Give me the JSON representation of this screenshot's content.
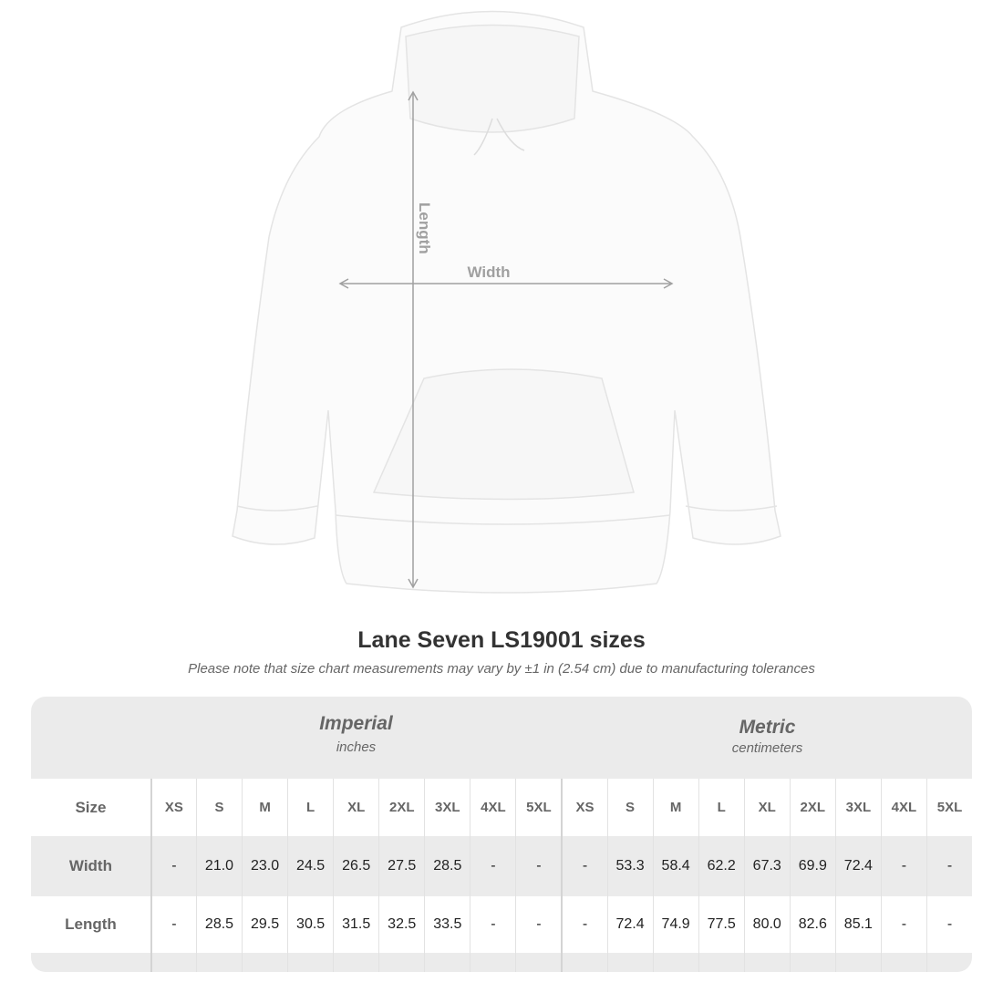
{
  "diagram": {
    "length_label": "Length",
    "width_label": "Width"
  },
  "title": "Lane Seven LS19001 sizes",
  "note": "Please note that size chart measurements may vary by ±1 in (2.54 cm) due to manufacturing tolerances",
  "table": {
    "imperial": {
      "name": "Imperial",
      "unit": "inches"
    },
    "metric": {
      "name": "Metric",
      "unit": "centimeters"
    },
    "size_label": "Size",
    "sizes": [
      "XS",
      "S",
      "M",
      "L",
      "XL",
      "2XL",
      "3XL",
      "4XL",
      "5XL",
      "XS",
      "S",
      "M",
      "L",
      "XL",
      "2XL",
      "3XL",
      "4XL",
      "5XL"
    ],
    "rows": [
      {
        "label": "Width",
        "values": [
          "-",
          "21.0",
          "23.0",
          "24.5",
          "26.5",
          "27.5",
          "28.5",
          "-",
          "-",
          "-",
          "53.3",
          "58.4",
          "62.2",
          "67.3",
          "69.9",
          "72.4",
          "-",
          "-"
        ]
      },
      {
        "label": "Length",
        "values": [
          "-",
          "28.5",
          "29.5",
          "30.5",
          "31.5",
          "32.5",
          "33.5",
          "-",
          "-",
          "-",
          "72.4",
          "74.9",
          "77.5",
          "80.0",
          "82.6",
          "85.1",
          "-",
          "-"
        ]
      }
    ]
  },
  "colors": {
    "band": "#ebebeb",
    "arrow": "#a0a0a0",
    "label": "#666666"
  }
}
